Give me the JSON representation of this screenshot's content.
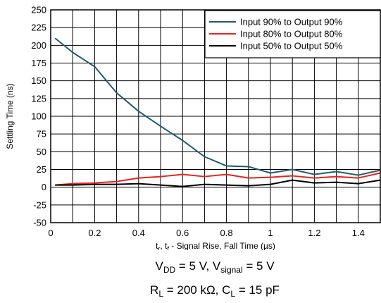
{
  "chart_data": {
    "type": "line",
    "xlabel": "t",
    "xlabel_parts": {
      "t1": "t",
      "s1": "r",
      "mid": ", t",
      "s2": "f",
      "rest": " - Signal Rise, Fall Time (",
      "unit": "µs",
      "close": ")"
    },
    "ylabel": "Settling Time (ns)",
    "xlim": [
      0,
      1.5
    ],
    "ylim": [
      -50,
      250
    ],
    "x_ticks": [
      0,
      0.2,
      0.4,
      0.6,
      0.8,
      1,
      1.2,
      1.4
    ],
    "x_tick_labels": [
      "0",
      "0.2",
      "0.4",
      "0.6",
      "0.8",
      "1",
      "1.2",
      "1.4"
    ],
    "y_ticks": [
      -50,
      -25,
      0,
      25,
      50,
      75,
      100,
      125,
      150,
      175,
      200,
      225,
      250
    ],
    "y_tick_labels": [
      "-50",
      "-25",
      "0",
      "25",
      "50",
      "75",
      "100",
      "125",
      "150",
      "175",
      "200",
      "225",
      "250"
    ],
    "x_grid_step": 0.1,
    "grid": true,
    "legend_position": "top-right",
    "series": [
      {
        "name": "Input 90% to Output 90%",
        "color": "#1f5b6e",
        "x": [
          0.02,
          0.1,
          0.2,
          0.3,
          0.4,
          0.5,
          0.6,
          0.7,
          0.8,
          0.9,
          1.0,
          1.1,
          1.2,
          1.3,
          1.4,
          1.5
        ],
        "y": [
          210,
          190,
          170,
          133,
          107,
          86,
          66,
          43,
          30,
          29,
          20,
          25,
          18,
          22,
          17,
          24
        ]
      },
      {
        "name": "Input 80% to Output 80%",
        "color": "#e8231e",
        "x": [
          0.02,
          0.1,
          0.2,
          0.3,
          0.4,
          0.5,
          0.6,
          0.7,
          0.8,
          0.9,
          1.0,
          1.1,
          1.2,
          1.3,
          1.4,
          1.5
        ],
        "y": [
          3,
          5,
          6,
          8,
          13,
          15,
          18,
          15,
          18,
          13,
          14,
          16,
          13,
          15,
          13,
          20
        ]
      },
      {
        "name": "Input 50% to Output 50%",
        "color": "#000000",
        "x": [
          0.02,
          0.1,
          0.2,
          0.3,
          0.4,
          0.5,
          0.6,
          0.7,
          0.8,
          0.9,
          1.0,
          1.1,
          1.2,
          1.3,
          1.4,
          1.5
        ],
        "y": [
          3,
          3,
          4,
          4,
          5,
          3,
          1,
          4,
          3,
          2,
          4,
          10,
          6,
          7,
          5,
          10
        ]
      }
    ]
  },
  "caption": {
    "line1": {
      "v": "V",
      "vsub": "DD",
      "mid": " = 5 V, V",
      "ssub": "signal",
      "end": " = 5 V"
    },
    "line2": {
      "r": "R",
      "rsub": "L",
      "mid": " = 200 kΩ, C",
      "csub": "L",
      "end": " = 15 pF"
    }
  }
}
